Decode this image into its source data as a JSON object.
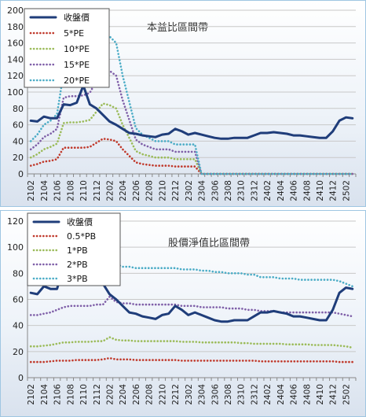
{
  "chart_data": [
    {
      "type": "line",
      "title": "本益比區間帶",
      "x": [
        "2102",
        "2103",
        "2104",
        "2105",
        "2106",
        "2107",
        "2108",
        "2109",
        "2110",
        "2111",
        "2112",
        "2201",
        "2202",
        "2203",
        "2204",
        "2205",
        "2206",
        "2207",
        "2208",
        "2209",
        "2210",
        "2211",
        "2212",
        "2301",
        "2302",
        "2303",
        "2304",
        "2305",
        "2306",
        "2307",
        "2308",
        "2309",
        "2310",
        "2311",
        "2312",
        "2401",
        "2402",
        "2403",
        "2404",
        "2405",
        "2406",
        "2407",
        "2408",
        "2409",
        "2410",
        "2411",
        "2412",
        "2501",
        "2502",
        "2503"
      ],
      "xticks": [
        "2102",
        "2104",
        "2106",
        "2108",
        "2110",
        "2112",
        "2202",
        "2204",
        "2206",
        "2208",
        "2210",
        "2212",
        "2302",
        "2304",
        "2306",
        "2308",
        "2310",
        "2312",
        "2402",
        "2404",
        "2406",
        "2408",
        "2410",
        "2412",
        "2502"
      ],
      "ylim": [
        0,
        200
      ],
      "yticks": [
        "0",
        "20",
        "40",
        "60",
        "80",
        "100",
        "120",
        "140",
        "160",
        "180",
        "200"
      ],
      "legend_position": "top-left",
      "series": [
        {
          "name": "收盤價",
          "color": "#1f3d7a",
          "style": "solid",
          "values": [
            65,
            64,
            70,
            68,
            68,
            85,
            84,
            87,
            108,
            85,
            80,
            72,
            64,
            60,
            55,
            50,
            49,
            47,
            46,
            45,
            48,
            49,
            55,
            52,
            48,
            50,
            48,
            46,
            44,
            43,
            43,
            44,
            44,
            44,
            47,
            50,
            50,
            51,
            50,
            49,
            47,
            47,
            46,
            45,
            44,
            44,
            52,
            65,
            69,
            68
          ]
        },
        {
          "name": "5*PE",
          "color": "#c0392b",
          "style": "dotted",
          "values": [
            10,
            12,
            15,
            16,
            18,
            32,
            32,
            32,
            32,
            33,
            38,
            43,
            42,
            40,
            30,
            22,
            14,
            12,
            11,
            10,
            10,
            10,
            9,
            9,
            9,
            9,
            0,
            0,
            0,
            0,
            0,
            0,
            0,
            0,
            0,
            0,
            0,
            0,
            0,
            0,
            0,
            0,
            0,
            0,
            0,
            0,
            0,
            0,
            0,
            0
          ]
        },
        {
          "name": "10*PE",
          "color": "#9bbb59",
          "style": "dotted",
          "values": [
            20,
            24,
            30,
            33,
            37,
            62,
            63,
            63,
            64,
            66,
            76,
            86,
            84,
            80,
            60,
            44,
            28,
            24,
            22,
            20,
            20,
            20,
            18,
            18,
            18,
            18,
            0,
            0,
            0,
            0,
            0,
            0,
            0,
            0,
            0,
            0,
            0,
            0,
            0,
            0,
            0,
            0,
            0,
            0,
            0,
            0,
            0,
            0,
            0,
            0
          ]
        },
        {
          "name": "15*PE",
          "color": "#7f5fa8",
          "style": "dotted",
          "values": [
            30,
            36,
            45,
            49,
            55,
            93,
            95,
            95,
            96,
            99,
            114,
            129,
            126,
            120,
            90,
            66,
            42,
            36,
            33,
            30,
            30,
            30,
            27,
            27,
            27,
            27,
            0,
            0,
            0,
            0,
            0,
            0,
            0,
            0,
            0,
            0,
            0,
            0,
            0,
            0,
            0,
            0,
            0,
            0,
            0,
            0,
            0,
            0,
            0,
            0
          ]
        },
        {
          "name": "20*PE",
          "color": "#4bacc6",
          "style": "dotted",
          "values": [
            40,
            48,
            60,
            65,
            73,
            124,
            126,
            126,
            128,
            132,
            152,
            172,
            168,
            160,
            120,
            88,
            56,
            48,
            44,
            40,
            40,
            40,
            36,
            36,
            36,
            36,
            0,
            0,
            0,
            0,
            0,
            0,
            0,
            0,
            0,
            0,
            0,
            0,
            0,
            0,
            0,
            0,
            0,
            0,
            0,
            0,
            0,
            0,
            0,
            0
          ]
        }
      ]
    },
    {
      "type": "line",
      "title": "股價淨值比區間帶",
      "x": [
        "2102",
        "2103",
        "2104",
        "2105",
        "2106",
        "2107",
        "2108",
        "2109",
        "2110",
        "2111",
        "2112",
        "2201",
        "2202",
        "2203",
        "2204",
        "2205",
        "2206",
        "2207",
        "2208",
        "2209",
        "2210",
        "2211",
        "2212",
        "2301",
        "2302",
        "2303",
        "2304",
        "2305",
        "2306",
        "2307",
        "2308",
        "2309",
        "2310",
        "2311",
        "2312",
        "2401",
        "2402",
        "2403",
        "2404",
        "2405",
        "2406",
        "2407",
        "2408",
        "2409",
        "2410",
        "2411",
        "2412",
        "2501",
        "2502",
        "2503"
      ],
      "xticks": [
        "2102",
        "2104",
        "2106",
        "2108",
        "2110",
        "2112",
        "2202",
        "2204",
        "2206",
        "2208",
        "2210",
        "2212",
        "2302",
        "2304",
        "2306",
        "2308",
        "2310",
        "2312",
        "2402",
        "2404",
        "2406",
        "2408",
        "2410",
        "2412",
        "2502"
      ],
      "ylim": [
        0,
        120
      ],
      "yticks": [
        "0",
        "20",
        "40",
        "60",
        "80",
        "100",
        "120"
      ],
      "legend_position": "top-left",
      "series": [
        {
          "name": "收盤價",
          "color": "#1f3d7a",
          "style": "solid",
          "values": [
            65,
            64,
            70,
            68,
            68,
            85,
            84,
            87,
            108,
            85,
            80,
            72,
            64,
            60,
            55,
            50,
            49,
            47,
            46,
            45,
            48,
            49,
            55,
            52,
            48,
            50,
            48,
            46,
            44,
            43,
            43,
            44,
            44,
            44,
            47,
            50,
            50,
            51,
            50,
            49,
            47,
            47,
            46,
            45,
            44,
            44,
            52,
            65,
            69,
            68
          ]
        },
        {
          "name": "0.5*PB",
          "color": "#c0392b",
          "style": "dotted",
          "values": [
            12,
            12,
            12,
            12.5,
            13,
            13,
            13,
            13.5,
            13.5,
            13.5,
            13.5,
            14,
            15,
            14,
            14,
            14,
            13.5,
            13.5,
            13.5,
            13.5,
            13.5,
            13.5,
            13.5,
            13,
            13,
            13,
            13,
            13,
            13,
            13,
            13,
            13,
            13,
            13,
            13,
            12.5,
            12.5,
            12.5,
            12.5,
            12.5,
            12.5,
            12.5,
            12.5,
            12.5,
            12.5,
            12.5,
            12.5,
            12,
            12,
            12
          ]
        },
        {
          "name": "1*PB",
          "color": "#9bbb59",
          "style": "dotted",
          "values": [
            24,
            24,
            24.5,
            25,
            26,
            27,
            27,
            27.5,
            27.5,
            27.5,
            28,
            28,
            31,
            29,
            28.5,
            28.5,
            28,
            28,
            28,
            28,
            28,
            28,
            28,
            27.5,
            27.5,
            27.5,
            27,
            27,
            27,
            27,
            27,
            27,
            26.5,
            26.5,
            26,
            26,
            26,
            26,
            26,
            25.5,
            25.5,
            25.5,
            25.5,
            25,
            25,
            25,
            25,
            24.5,
            24,
            23
          ]
        },
        {
          "name": "2*PB",
          "color": "#7f5fa8",
          "style": "dotted",
          "values": [
            48,
            48,
            49,
            50,
            52,
            54,
            55,
            55,
            55,
            55,
            56,
            56,
            62,
            58,
            57,
            57,
            56,
            56,
            56,
            56,
            56,
            56,
            56,
            55,
            55,
            55,
            54,
            54,
            54,
            54,
            53,
            53,
            53,
            52,
            52,
            51,
            51,
            51,
            50,
            50,
            50,
            50,
            50,
            50,
            50,
            50,
            50,
            49,
            48,
            47
          ]
        },
        {
          "name": "3*PB",
          "color": "#4bacc6",
          "style": "dotted",
          "values": [
            72,
            72,
            74,
            75,
            78,
            81,
            82,
            82,
            83,
            83,
            84,
            84,
            93,
            87,
            85,
            85,
            84,
            84,
            84,
            84,
            84,
            84,
            84,
            83,
            83,
            83,
            82,
            82,
            81,
            81,
            80,
            80,
            80,
            79,
            79,
            77,
            77,
            77,
            76,
            76,
            76,
            75,
            75,
            75,
            75,
            75,
            75,
            74,
            72,
            70
          ]
        }
      ]
    }
  ]
}
